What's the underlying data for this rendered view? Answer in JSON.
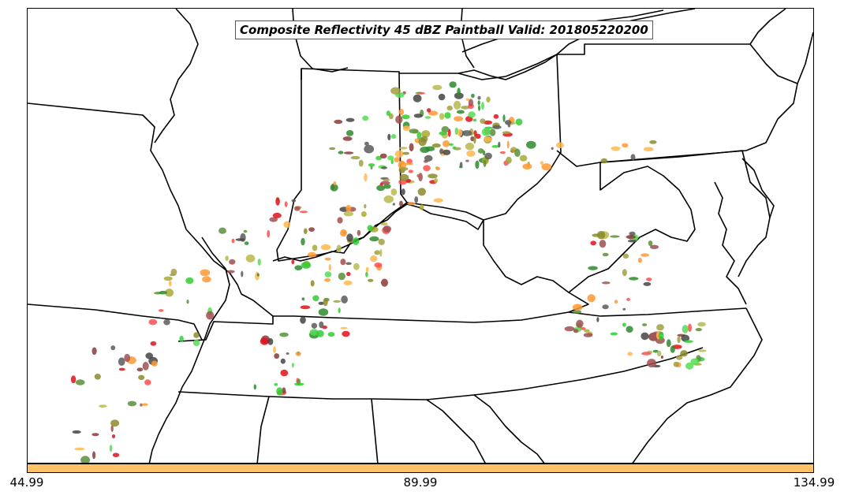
{
  "title": "Composite Reflectivity 45 dBZ Paintball Valid: 201805220200",
  "colorbar": {
    "color": "#ffc266",
    "min_label": "44.99",
    "mid_label": "89.99",
    "max_label": "134.99"
  },
  "colors": {
    "boundaries": "#000000",
    "ensemble_members": [
      "#ff9933",
      "#e0101a",
      "#ff4d4d",
      "#ffb74d",
      "#33cc33",
      "#55dd55",
      "#2e8b2e",
      "#5a8f3c",
      "#8b8b2a",
      "#a0a040",
      "#b8b84d",
      "#8b3a3a",
      "#a05050",
      "#444444",
      "#5a5a5a",
      "#aaaa33"
    ]
  }
}
